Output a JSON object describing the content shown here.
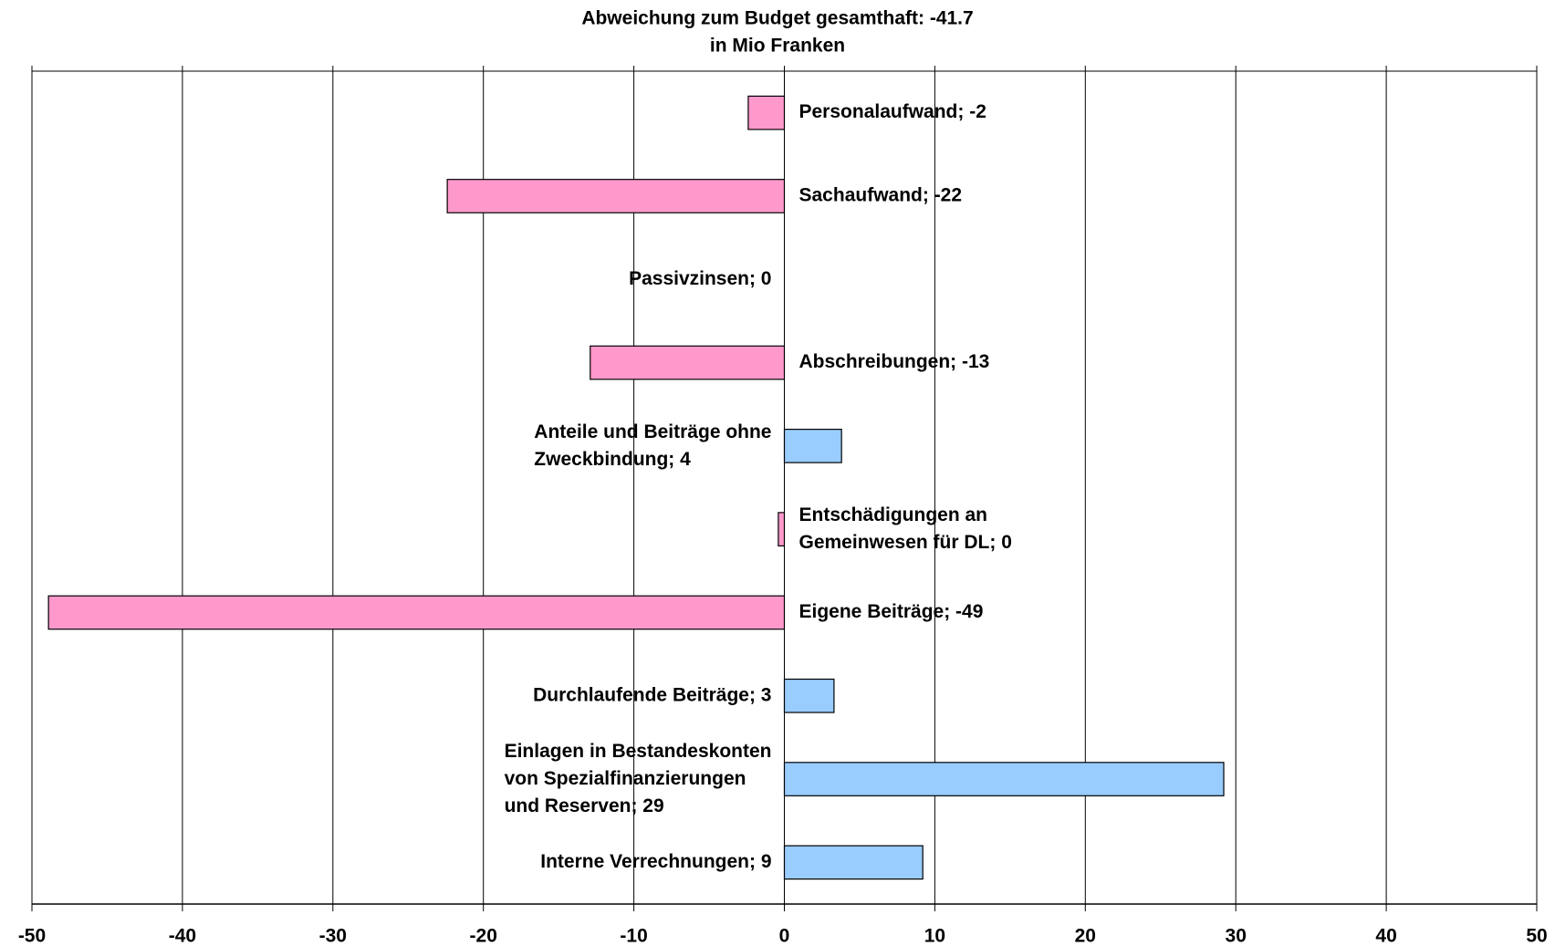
{
  "chart_data": {
    "type": "barh",
    "title": "Abweichung zum Budget gesamthaft: -41.7",
    "subtitle": "in Mio Franken",
    "categories": [
      "Personalaufwand; -2",
      "Sachaufwand; -22",
      "Passivzinsen; 0",
      "Abschreibungen; -13",
      "Anteile und Beiträge ohne\nZweckbindung; 4",
      "Entschädigungen an\nGemeinwesen für DL; 0",
      "Eigene Beiträge; -49",
      "Durchlaufende Beiträge; 3",
      "Einlagen in Bestandeskonten\nvon Spezialfinanzierungen\nund Reserven; 29",
      "Interne Verrechnungen; 9"
    ],
    "values": [
      -2.4,
      -22.4,
      0,
      -12.9,
      3.8,
      -0.4,
      -48.9,
      3.3,
      29.2,
      9.2
    ],
    "colors": [
      "#ff99cc",
      "#ff99cc",
      "#ff99cc",
      "#ff99cc",
      "#99ccff",
      "#ff99cc",
      "#ff99cc",
      "#99ccff",
      "#99ccff",
      "#99ccff"
    ],
    "xlim": [
      -50,
      50
    ],
    "xticks": [
      -50,
      -40,
      -30,
      -20,
      -10,
      0,
      10,
      20,
      30,
      40,
      50
    ],
    "grid": true
  }
}
